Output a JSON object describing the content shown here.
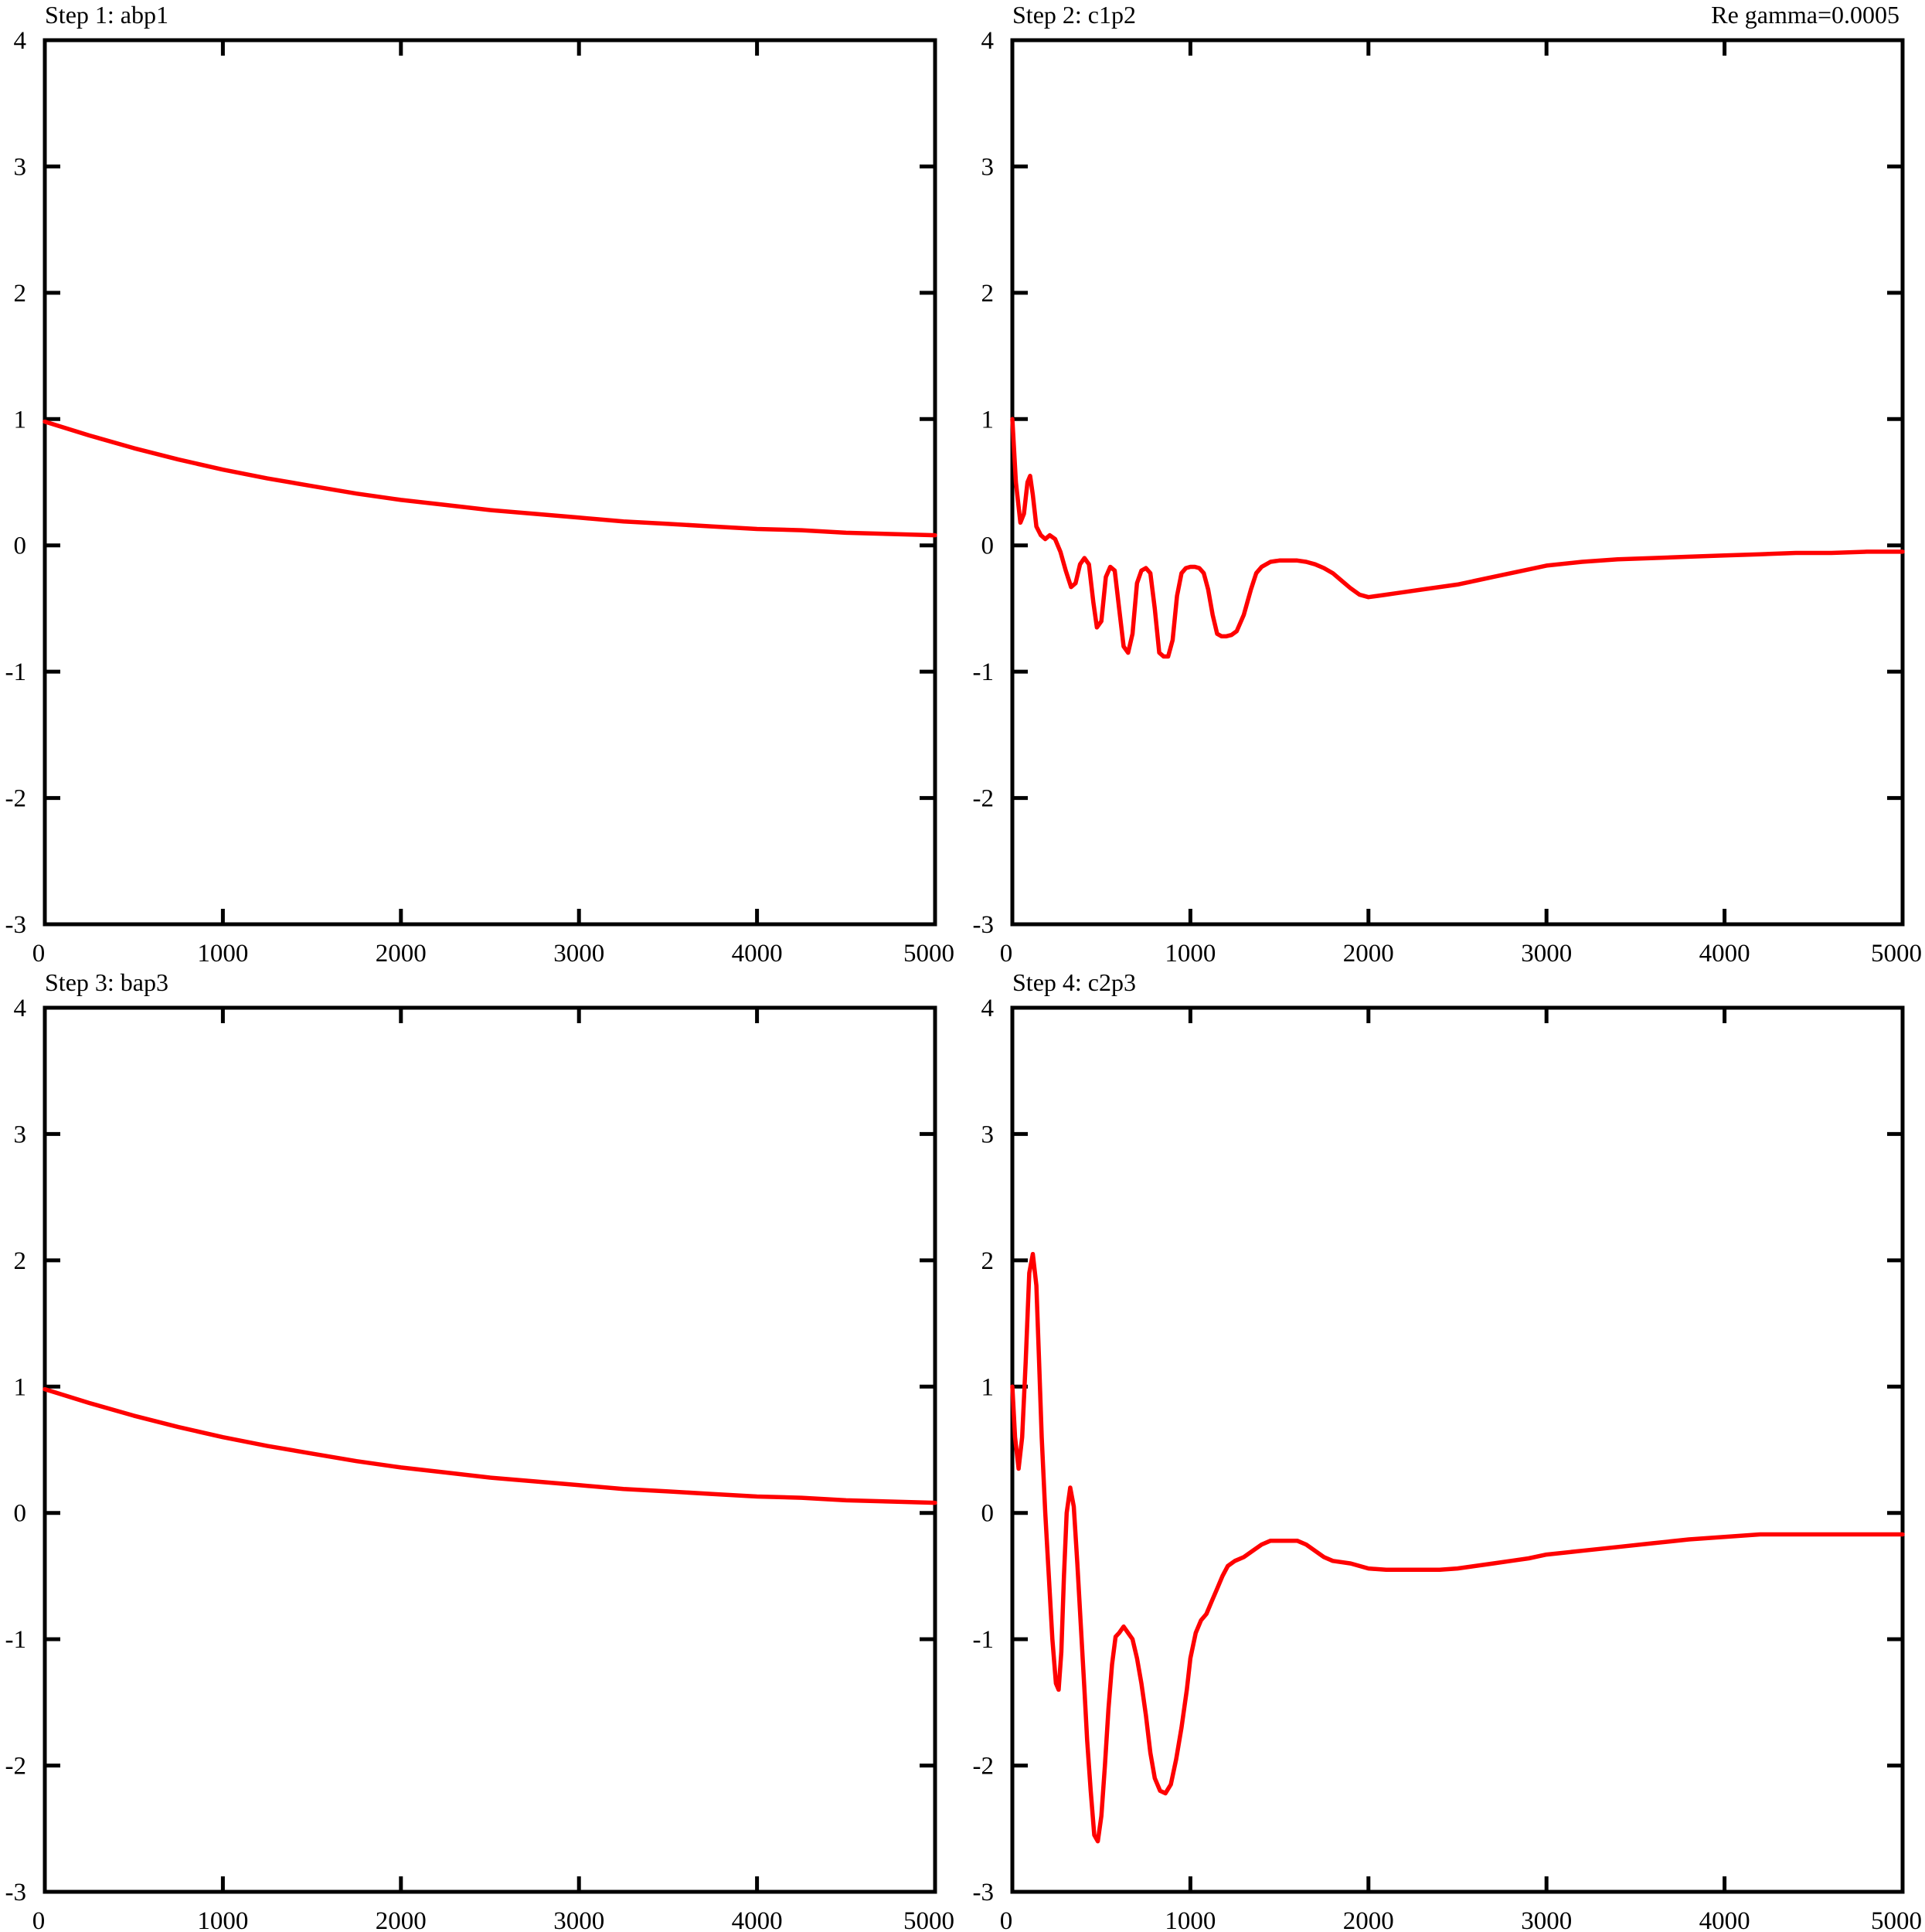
{
  "figure": {
    "annotation": "Re   gamma=0.0005"
  },
  "colors": {
    "series": "#ff0000",
    "axes": "#000000",
    "background": "#ffffff"
  },
  "chart_data": [
    {
      "type": "line",
      "title": "Step 1: abp1",
      "xlabel": "",
      "ylabel": "",
      "xlim": [
        0,
        5000
      ],
      "ylim": [
        -3,
        4
      ],
      "xticks": [
        0,
        1000,
        2000,
        3000,
        4000,
        5000
      ],
      "yticks": [
        -3,
        -2,
        -1,
        0,
        1,
        2,
        3,
        4
      ],
      "grid": false,
      "series": [
        {
          "color": "#ff0000",
          "x": [
            0,
            250,
            500,
            750,
            1000,
            1250,
            1500,
            1750,
            2000,
            2250,
            2500,
            2750,
            3000,
            3250,
            3500,
            3750,
            4000,
            4250,
            4500,
            4750,
            5000
          ],
          "y": [
            0.98,
            0.87,
            0.77,
            0.68,
            0.6,
            0.53,
            0.47,
            0.41,
            0.36,
            0.32,
            0.28,
            0.25,
            0.22,
            0.19,
            0.17,
            0.15,
            0.13,
            0.12,
            0.1,
            0.09,
            0.08
          ]
        }
      ]
    },
    {
      "type": "line",
      "title": "Step 2: c1p2",
      "xlabel": "",
      "ylabel": "",
      "xlim": [
        0,
        5000
      ],
      "ylim": [
        -3,
        4
      ],
      "xticks": [
        0,
        1000,
        2000,
        3000,
        4000,
        5000
      ],
      "yticks": [
        -3,
        -2,
        -1,
        0,
        1,
        2,
        3,
        4
      ],
      "grid": false,
      "series": [
        {
          "color": "#ff0000",
          "x": [
            0,
            20,
            45,
            65,
            85,
            100,
            115,
            135,
            160,
            185,
            210,
            240,
            270,
            300,
            330,
            355,
            380,
            405,
            430,
            455,
            475,
            500,
            525,
            550,
            575,
            600,
            625,
            650,
            675,
            700,
            725,
            750,
            775,
            800,
            825,
            850,
            875,
            900,
            925,
            950,
            975,
            1000,
            1025,
            1050,
            1075,
            1100,
            1125,
            1150,
            1175,
            1200,
            1230,
            1260,
            1300,
            1340,
            1370,
            1400,
            1450,
            1500,
            1550,
            1600,
            1650,
            1700,
            1750,
            1800,
            1850,
            1900,
            1950,
            2000,
            2050,
            2100,
            2150,
            2200,
            2300,
            2400,
            2500,
            2600,
            2700,
            2800,
            2900,
            3000,
            3200,
            3400,
            3600,
            3800,
            4000,
            4200,
            4400,
            4600,
            4800,
            5000
          ],
          "y": [
            1.0,
            0.5,
            0.18,
            0.25,
            0.5,
            0.55,
            0.4,
            0.15,
            0.08,
            0.05,
            0.08,
            0.05,
            -0.05,
            -0.2,
            -0.33,
            -0.3,
            -0.15,
            -0.1,
            -0.15,
            -0.45,
            -0.65,
            -0.6,
            -0.25,
            -0.17,
            -0.2,
            -0.5,
            -0.8,
            -0.85,
            -0.7,
            -0.3,
            -0.2,
            -0.18,
            -0.22,
            -0.5,
            -0.85,
            -0.88,
            -0.88,
            -0.75,
            -0.4,
            -0.22,
            -0.18,
            -0.17,
            -0.17,
            -0.18,
            -0.22,
            -0.35,
            -0.55,
            -0.7,
            -0.72,
            -0.72,
            -0.71,
            -0.68,
            -0.55,
            -0.35,
            -0.22,
            -0.17,
            -0.13,
            -0.12,
            -0.12,
            -0.12,
            -0.13,
            -0.15,
            -0.18,
            -0.22,
            -0.28,
            -0.34,
            -0.39,
            -0.41,
            -0.4,
            -0.39,
            -0.38,
            -0.37,
            -0.35,
            -0.33,
            -0.31,
            -0.28,
            -0.25,
            -0.22,
            -0.19,
            -0.16,
            -0.13,
            -0.11,
            -0.1,
            -0.09,
            -0.08,
            -0.07,
            -0.06,
            -0.06,
            -0.05,
            -0.05
          ]
        }
      ]
    },
    {
      "type": "line",
      "title": "Step 3: bap3",
      "xlabel": "",
      "ylabel": "",
      "xlim": [
        0,
        5000
      ],
      "ylim": [
        -3,
        4
      ],
      "xticks": [
        0,
        1000,
        2000,
        3000,
        4000,
        5000
      ],
      "yticks": [
        -3,
        -2,
        -1,
        0,
        1,
        2,
        3,
        4
      ],
      "grid": false,
      "series": [
        {
          "color": "#ff0000",
          "x": [
            0,
            250,
            500,
            750,
            1000,
            1250,
            1500,
            1750,
            2000,
            2250,
            2500,
            2750,
            3000,
            3250,
            3500,
            3750,
            4000,
            4250,
            4500,
            4750,
            5000
          ],
          "y": [
            0.98,
            0.87,
            0.77,
            0.68,
            0.6,
            0.53,
            0.47,
            0.41,
            0.36,
            0.32,
            0.28,
            0.25,
            0.22,
            0.19,
            0.17,
            0.15,
            0.13,
            0.12,
            0.1,
            0.09,
            0.08
          ]
        }
      ]
    },
    {
      "type": "line",
      "title": "Step 4: c2p3",
      "xlabel": "",
      "ylabel": "",
      "xlim": [
        0,
        5000
      ],
      "ylim": [
        -3,
        4
      ],
      "xticks": [
        0,
        1000,
        2000,
        3000,
        4000,
        5000
      ],
      "yticks": [
        -3,
        -2,
        -1,
        0,
        1,
        2,
        3,
        4
      ],
      "grid": false,
      "series": [
        {
          "color": "#ff0000",
          "x": [
            0,
            15,
            35,
            55,
            75,
            95,
            115,
            135,
            150,
            165,
            185,
            205,
            225,
            245,
            260,
            275,
            290,
            305,
            325,
            345,
            365,
            385,
            405,
            420,
            440,
            460,
            480,
            500,
            520,
            540,
            560,
            580,
            600,
            625,
            650,
            675,
            700,
            725,
            750,
            775,
            800,
            830,
            860,
            890,
            920,
            950,
            980,
            1000,
            1030,
            1060,
            1090,
            1120,
            1150,
            1180,
            1210,
            1250,
            1300,
            1350,
            1400,
            1450,
            1500,
            1550,
            1600,
            1650,
            1700,
            1750,
            1800,
            1900,
            1950,
            2000,
            2100,
            2200,
            2300,
            2400,
            2500,
            2600,
            2700,
            2800,
            2900,
            3000,
            3200,
            3400,
            3600,
            3800,
            4000,
            4200,
            4400,
            4600,
            4800,
            5000
          ],
          "y": [
            1.0,
            0.6,
            0.35,
            0.6,
            1.2,
            1.9,
            2.05,
            1.8,
            1.2,
            0.6,
            0.0,
            -0.5,
            -1.0,
            -1.35,
            -1.4,
            -1.1,
            -0.5,
            0.0,
            0.2,
            0.05,
            -0.4,
            -0.9,
            -1.4,
            -1.8,
            -2.2,
            -2.55,
            -2.6,
            -2.4,
            -2.0,
            -1.55,
            -1.2,
            -0.98,
            -0.95,
            -0.9,
            -0.95,
            -1.0,
            -1.15,
            -1.35,
            -1.6,
            -1.9,
            -2.1,
            -2.2,
            -2.22,
            -2.15,
            -1.95,
            -1.7,
            -1.4,
            -1.15,
            -0.95,
            -0.85,
            -0.8,
            -0.7,
            -0.6,
            -0.5,
            -0.42,
            -0.38,
            -0.35,
            -0.3,
            -0.25,
            -0.22,
            -0.22,
            -0.22,
            -0.22,
            -0.25,
            -0.3,
            -0.35,
            -0.38,
            -0.4,
            -0.42,
            -0.44,
            -0.45,
            -0.45,
            -0.45,
            -0.45,
            -0.44,
            -0.42,
            -0.4,
            -0.38,
            -0.36,
            -0.33,
            -0.3,
            -0.27,
            -0.24,
            -0.21,
            -0.19,
            -0.17,
            -0.17,
            -0.17,
            -0.17,
            -0.17
          ]
        }
      ]
    }
  ]
}
